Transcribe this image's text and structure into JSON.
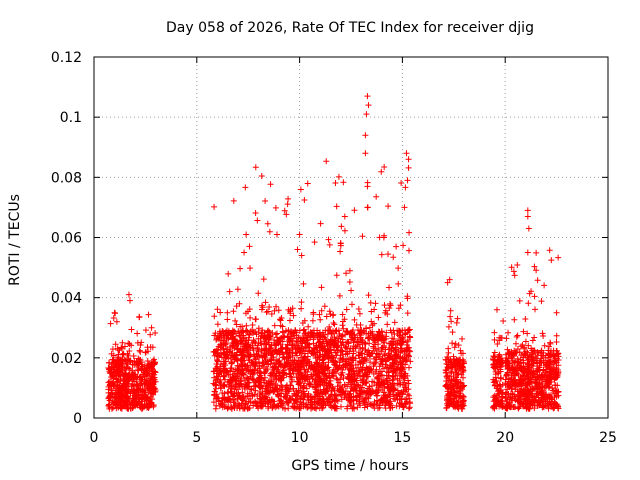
{
  "chart_data": {
    "type": "scatter",
    "title": "Day 058 of 2026, Rate Of TEC Index for receiver djig",
    "xlabel": "GPS time / hours",
    "ylabel": "ROTI / TECUs",
    "xlim": [
      0,
      25
    ],
    "ylim": [
      0,
      0.12
    ],
    "xticks": [
      0,
      5,
      10,
      15,
      20,
      25
    ],
    "xtick_labels": [
      "0",
      "5",
      "10",
      "15",
      "20",
      "25"
    ],
    "yticks": [
      0,
      0.02,
      0.04,
      0.06,
      0.08,
      0.1,
      0.12
    ],
    "ytick_labels": [
      "0",
      "0.02",
      "0.04",
      "0.06",
      "0.08",
      "0.1",
      "0.12"
    ],
    "grid": true,
    "marker": "+",
    "color": "#ff0000",
    "series": [
      {
        "name": "ROTI",
        "segments": [
          {
            "x_range": [
              0.7,
              3.0
            ],
            "typical_max": 0.022,
            "peak": 0.041
          },
          {
            "x_range": [
              5.8,
              15.4
            ],
            "typical_max": 0.035,
            "peak": 0.107
          },
          {
            "x_range": [
              17.1,
              18.0
            ],
            "typical_max": 0.022,
            "peak": 0.046
          },
          {
            "x_range": [
              19.4,
              19.9
            ],
            "typical_max": 0.025,
            "peak": 0.036
          },
          {
            "x_range": [
              20.0,
              22.6
            ],
            "typical_max": 0.026,
            "peak": 0.069
          }
        ],
        "highlights": [
          {
            "x": 13.3,
            "y": 0.107
          },
          {
            "x": 13.35,
            "y": 0.104
          },
          {
            "x": 13.25,
            "y": 0.101
          },
          {
            "x": 13.2,
            "y": 0.094
          },
          {
            "x": 13.2,
            "y": 0.088
          },
          {
            "x": 15.2,
            "y": 0.088
          },
          {
            "x": 15.3,
            "y": 0.086
          },
          {
            "x": 15.25,
            "y": 0.079
          },
          {
            "x": 13.3,
            "y": 0.077
          },
          {
            "x": 13.3,
            "y": 0.07
          },
          {
            "x": 15.1,
            "y": 0.07
          },
          {
            "x": 12.2,
            "y": 0.067
          },
          {
            "x": 21.1,
            "y": 0.069
          },
          {
            "x": 21.1,
            "y": 0.067
          },
          {
            "x": 21.15,
            "y": 0.063
          },
          {
            "x": 10.0,
            "y": 0.061
          },
          {
            "x": 8.9,
            "y": 0.061
          },
          {
            "x": 7.4,
            "y": 0.061
          },
          {
            "x": 9.9,
            "y": 0.056
          },
          {
            "x": 10.1,
            "y": 0.054
          },
          {
            "x": 7.3,
            "y": 0.055
          },
          {
            "x": 21.1,
            "y": 0.055
          },
          {
            "x": 12.0,
            "y": 0.058
          },
          {
            "x": 14.1,
            "y": 0.06
          },
          {
            "x": 17.3,
            "y": 0.046
          },
          {
            "x": 17.2,
            "y": 0.045
          },
          {
            "x": 1.7,
            "y": 0.041
          },
          {
            "x": 1.75,
            "y": 0.039
          },
          {
            "x": 6.6,
            "y": 0.042
          },
          {
            "x": 19.6,
            "y": 0.036
          },
          {
            "x": 22.5,
            "y": 0.035
          },
          {
            "x": 2.8,
            "y": 0.03
          },
          {
            "x": 1.0,
            "y": 0.035
          }
        ]
      }
    ]
  }
}
